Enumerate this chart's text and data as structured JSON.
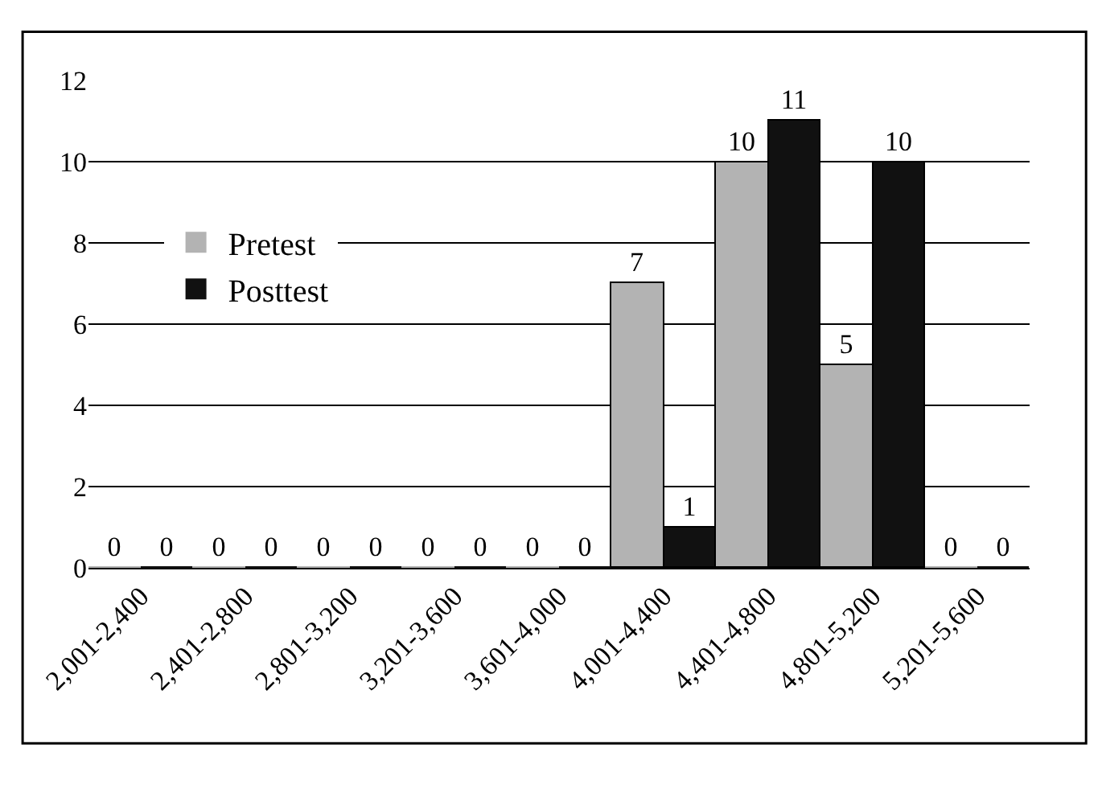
{
  "chart_data": {
    "type": "bar",
    "categories": [
      "2,001-2,400",
      "2,401-2,800",
      "2,801-3,200",
      "3,201-3,600",
      "3,601-4,000",
      "4,001-4,400",
      "4,401-4,800",
      "4,801-5,200",
      "5,201-5,600"
    ],
    "series": [
      {
        "name": "Pretest",
        "color": "#b3b3b3",
        "values": [
          0,
          0,
          0,
          0,
          0,
          7,
          10,
          5,
          0
        ]
      },
      {
        "name": "Posttest",
        "color": "#111111",
        "values": [
          0,
          0,
          0,
          0,
          0,
          1,
          11,
          10,
          0
        ]
      }
    ],
    "ylim": [
      0,
      12
    ],
    "yticks": [
      0,
      2,
      4,
      6,
      8,
      10,
      12
    ],
    "grid": "y",
    "legend": "left",
    "data_labels": true
  }
}
